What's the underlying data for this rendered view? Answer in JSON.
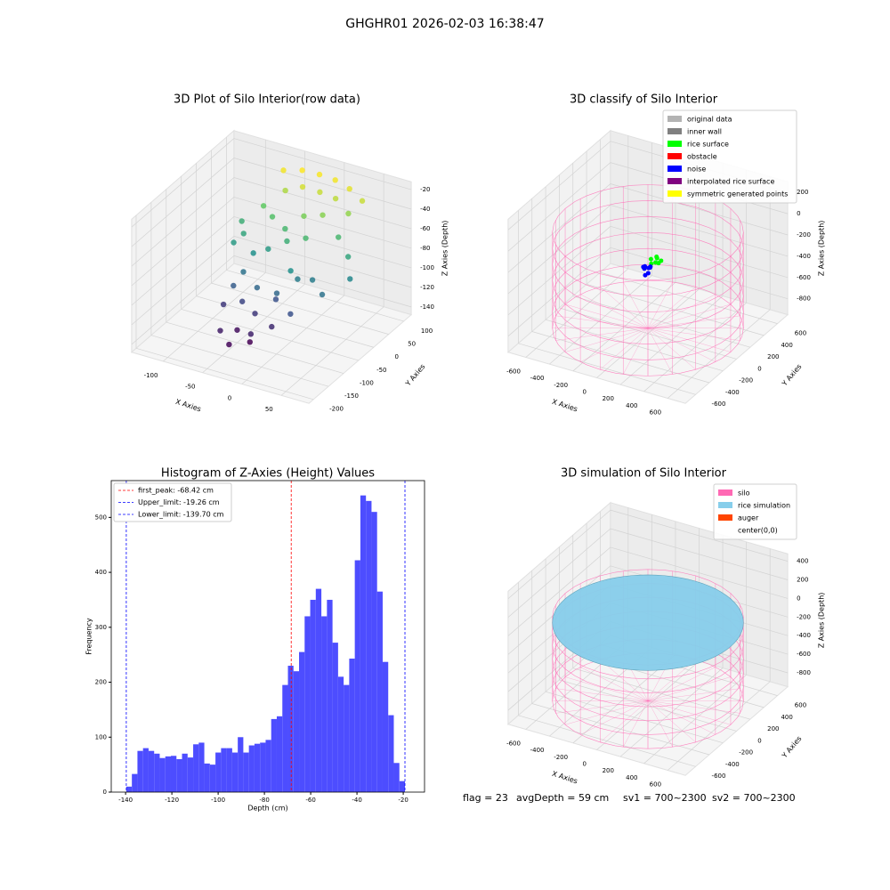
{
  "title": "GHGHR01 2026-02-03 16:38:47",
  "footer": [
    "flag = 23",
    "avgDepth = 59 cm",
    "sv1 = 700~2300",
    "sv2 = 700~2300"
  ],
  "chart_data": [
    {
      "type": "scatter3d",
      "title": "3D Plot of Silo Interior(row data)",
      "xlabel": "X Axies",
      "ylabel": "Y Axies",
      "zlabel": "Z Axies (Depth)",
      "colormap": "viridis",
      "x": [
        -60,
        -40,
        -20,
        0,
        20,
        40,
        -50,
        -30,
        -10,
        10,
        30,
        -70,
        -55,
        -35,
        -15,
        5,
        -80,
        -60,
        -45,
        -25,
        -5,
        -65,
        -40,
        -20,
        0,
        -75,
        -50,
        -30,
        -10,
        -60,
        -45,
        -25,
        -70,
        -55,
        -35,
        -15,
        25,
        45,
        55,
        15,
        -5,
        -85,
        -90,
        35,
        10
      ],
      "y": [
        80,
        90,
        95,
        95,
        90,
        80,
        60,
        65,
        70,
        70,
        60,
        40,
        30,
        20,
        30,
        40,
        0,
        -20,
        -10,
        0,
        10,
        -40,
        -60,
        -50,
        -30,
        -80,
        -100,
        -110,
        -90,
        -130,
        -140,
        -120,
        -60,
        -70,
        -80,
        -60,
        40,
        20,
        0,
        -20,
        -40,
        -20,
        20,
        -40,
        -80
      ],
      "z": [
        -22,
        -20,
        -21,
        -22,
        -25,
        -30,
        -35,
        -28,
        -30,
        -32,
        -40,
        -50,
        -55,
        -60,
        -45,
        -42,
        -70,
        -80,
        -75,
        -65,
        -60,
        -95,
        -100,
        -110,
        -90,
        -120,
        -135,
        -140,
        -125,
        -130,
        -138,
        -128,
        -105,
        -115,
        -120,
        -100,
        -60,
        -70,
        -85,
        -90,
        -80,
        -75,
        -65,
        -95,
        -110
      ],
      "xlim": [
        -140,
        85
      ],
      "ylim": [
        -215,
        125
      ],
      "zlim": [
        -148,
        -12
      ],
      "xticks": [
        -100,
        -50,
        0,
        50
      ],
      "yticks": [
        -200,
        -150,
        -100,
        -50,
        0,
        50,
        100
      ],
      "zticks": [
        -140,
        -120,
        -100,
        -80,
        -60,
        -40,
        -20
      ]
    },
    {
      "type": "scatter3d",
      "title": "3D classify of Silo Interior",
      "xlabel": "X Axies",
      "ylabel": "Y Axies",
      "zlabel": "Z Axies (Depth)",
      "legend": "upper right",
      "series": [
        {
          "name": "original data",
          "color": "#b3b3b3"
        },
        {
          "name": "inner wall",
          "color": "#808080"
        },
        {
          "name": "rice surface",
          "color": "#00ff00",
          "x": [
            20,
            60,
            90,
            40,
            70,
            100,
            50
          ],
          "y": [
            10,
            30,
            0,
            -20,
            -10,
            20,
            40
          ],
          "z": [
            -250,
            -240,
            -260,
            -270,
            -255,
            -245,
            -235
          ]
        },
        {
          "name": "obstacle",
          "color": "#ff0000"
        },
        {
          "name": "noise",
          "color": "#0000ff",
          "x": [
            -20,
            0,
            20,
            -10,
            10,
            -30,
            0,
            30
          ],
          "y": [
            -10,
            10,
            -30,
            -50,
            20,
            0,
            -40,
            -20
          ],
          "z": [
            -320,
            -340,
            -360,
            -300,
            -330,
            -350,
            -380,
            -310
          ]
        },
        {
          "name": "interpolated rice surface",
          "color": "#800080"
        },
        {
          "name": "symmetric generated points",
          "color": "#ffff00"
        }
      ],
      "silo": {
        "color": "#ff69b4",
        "radius": 700,
        "bottom": -900,
        "top": 0
      },
      "xlim": [
        -750,
        750
      ],
      "ylim": [
        -750,
        750
      ],
      "zlim": [
        -950,
        300
      ],
      "xticks": [
        -600,
        -400,
        -200,
        0,
        200,
        400,
        600
      ],
      "yticks": [
        -600,
        -400,
        -200,
        0,
        200,
        400,
        600
      ],
      "zticks": [
        -800,
        -600,
        -400,
        -200,
        0,
        200
      ]
    },
    {
      "type": "histogram",
      "title": "Histogram of Z-Axies (Height) Values",
      "xlabel": "Depth (cm)",
      "ylabel": "Frequency",
      "color": "#4d4dff",
      "legend": "upper left",
      "bins": [
        -139.7,
        -137.29,
        -134.88,
        -132.47,
        -130.07,
        -127.66,
        -125.25,
        -122.84,
        -120.43,
        -118.02,
        -115.61,
        -113.2,
        -110.79,
        -108.39,
        -105.98,
        -103.57,
        -101.16,
        -98.75,
        -96.34,
        -93.93,
        -91.52,
        -89.12,
        -86.71,
        -84.3,
        -81.89,
        -79.48,
        -77.07,
        -74.66,
        -72.25,
        -69.84,
        -67.44,
        -65.03,
        -62.62,
        -60.21,
        -57.8,
        -55.39,
        -52.98,
        -50.57,
        -48.16,
        -45.76,
        -43.35,
        -40.94,
        -38.53,
        -36.12,
        -33.71,
        -31.3,
        -28.89,
        -26.49,
        -24.08,
        -21.67,
        -19.26
      ],
      "values": [
        10,
        33,
        75,
        80,
        75,
        70,
        62,
        65,
        66,
        60,
        70,
        63,
        87,
        90,
        52,
        50,
        72,
        80,
        80,
        72,
        100,
        72,
        85,
        88,
        90,
        95,
        133,
        138,
        195,
        230,
        220,
        255,
        320,
        350,
        370,
        320,
        350,
        272,
        210,
        195,
        243,
        422,
        540,
        530,
        510,
        365,
        237,
        140,
        53,
        20
      ],
      "lines": [
        {
          "name": "first_peak",
          "value": -68.42,
          "label": "first_peak: -68.42 cm",
          "color": "#ff0000"
        },
        {
          "name": "Upper_limit",
          "value": -19.26,
          "label": "Upper_limit: -19.26 cm",
          "color": "#0000ff"
        },
        {
          "name": "Lower_limit",
          "value": -139.7,
          "label": "Lower_limit: -139.70 cm",
          "color": "#0000ff"
        }
      ],
      "xlim": [
        -146.2,
        -10.8
      ],
      "ylim": [
        0,
        567
      ],
      "xticks": [
        -140,
        -120,
        -100,
        -80,
        -60,
        -40,
        -20
      ],
      "yticks": [
        0,
        100,
        200,
        300,
        400,
        500
      ]
    },
    {
      "type": "surface3d",
      "title": "3D simulation of Silo Interior",
      "xlabel": "X Axies",
      "ylabel": "Y Axies",
      "zlabel": "Z Axies (Depth)",
      "legend": "upper right",
      "series": [
        {
          "name": "silo",
          "color": "#ff69b4",
          "radius": 700,
          "bottom": -900,
          "top": 0
        },
        {
          "name": "rice simulation",
          "color": "#87ceeb",
          "radius": 700,
          "z": -59
        },
        {
          "name": "auger",
          "color": "#ff4500"
        },
        {
          "name": "center(0,0)",
          "color": "#ffffff"
        }
      ],
      "xlim": [
        -750,
        750
      ],
      "ylim": [
        -750,
        750
      ],
      "zlim": [
        -950,
        480
      ],
      "xticks": [
        -600,
        -400,
        -200,
        0,
        200,
        400,
        600
      ],
      "yticks": [
        -600,
        -400,
        -200,
        0,
        200,
        400,
        600
      ],
      "zticks": [
        -800,
        -600,
        -400,
        -200,
        0,
        200,
        400
      ]
    }
  ]
}
